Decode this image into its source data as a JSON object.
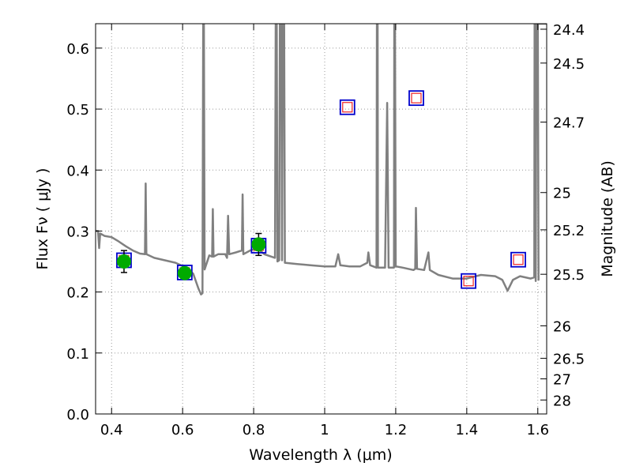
{
  "chart_data": {
    "type": "scatter",
    "xlabel": "Wavelength  λ (μm)",
    "ylabel": "Flux  Fν  ( μJy )",
    "y2label": "Magnitude (AB)",
    "xlim": [
      0.355,
      1.625
    ],
    "ylim": [
      0.0,
      0.64
    ],
    "grid": true,
    "x_ticks": [
      0.4,
      0.6,
      0.8,
      1.0,
      1.2,
      1.4,
      1.6
    ],
    "x_tick_labels": [
      "0.4",
      "0.6",
      "0.8",
      "1",
      "1.2",
      "1.4",
      "1.6"
    ],
    "y_ticks": [
      0.0,
      0.1,
      0.2,
      0.3,
      0.4,
      0.5,
      0.6
    ],
    "y_tick_labels": [
      "0.0",
      "0.1",
      "0.2",
      "0.3",
      "0.4",
      "0.5",
      "0.6"
    ],
    "mag_ticks": [
      24.4,
      24.5,
      24.7,
      25,
      25.2,
      25.5,
      26,
      26.5,
      27,
      28
    ],
    "mag_tick_labels": [
      "24.4",
      "24.5",
      "24.7",
      "25",
      "25.2",
      "25.5",
      "26",
      "26.5",
      "27",
      "28"
    ],
    "colors": {
      "model": "#808080",
      "observed_fill": "#00aa00",
      "model_square": "#0000cc",
      "upper_square": "#ee2222",
      "grid": "#999999"
    },
    "series": [
      {
        "type": "line",
        "points": [
          [
            0.355,
            0.3
          ],
          [
            0.362,
            0.3
          ],
          [
            0.365,
            0.272
          ],
          [
            0.368,
            0.296
          ],
          [
            0.38,
            0.292
          ],
          [
            0.4,
            0.29
          ],
          [
            0.42,
            0.283
          ],
          [
            0.44,
            0.275
          ],
          [
            0.46,
            0.268
          ],
          [
            0.48,
            0.263
          ],
          [
            0.494,
            0.262
          ],
          [
            0.496,
            0.378
          ],
          [
            0.498,
            0.262
          ],
          [
            0.52,
            0.256
          ],
          [
            0.55,
            0.252
          ],
          [
            0.58,
            0.248
          ],
          [
            0.61,
            0.24
          ],
          [
            0.63,
            0.23
          ],
          [
            0.645,
            0.205
          ],
          [
            0.652,
            0.196
          ],
          [
            0.656,
            0.198
          ],
          [
            0.658,
            0.64
          ],
          [
            0.66,
            0.64
          ],
          [
            0.662,
            0.237
          ],
          [
            0.675,
            0.26
          ],
          [
            0.683,
            0.258
          ],
          [
            0.685,
            0.336
          ],
          [
            0.687,
            0.258
          ],
          [
            0.7,
            0.262
          ],
          [
            0.72,
            0.262
          ],
          [
            0.725,
            0.256
          ],
          [
            0.728,
            0.325
          ],
          [
            0.731,
            0.262
          ],
          [
            0.75,
            0.265
          ],
          [
            0.767,
            0.268
          ],
          [
            0.769,
            0.36
          ],
          [
            0.771,
            0.262
          ],
          [
            0.79,
            0.268
          ],
          [
            0.81,
            0.272
          ],
          [
            0.83,
            0.262
          ],
          [
            0.86,
            0.256
          ],
          [
            0.862,
            0.64
          ],
          [
            0.865,
            0.64
          ],
          [
            0.867,
            0.25
          ],
          [
            0.872,
            0.252
          ],
          [
            0.874,
            0.64
          ],
          [
            0.878,
            0.64
          ],
          [
            0.88,
            0.252
          ],
          [
            0.882,
            0.64
          ],
          [
            0.886,
            0.64
          ],
          [
            0.888,
            0.248
          ],
          [
            0.92,
            0.246
          ],
          [
            0.96,
            0.244
          ],
          [
            1.0,
            0.242
          ],
          [
            1.03,
            0.242
          ],
          [
            1.038,
            0.262
          ],
          [
            1.044,
            0.244
          ],
          [
            1.07,
            0.242
          ],
          [
            1.1,
            0.242
          ],
          [
            1.12,
            0.248
          ],
          [
            1.123,
            0.265
          ],
          [
            1.128,
            0.244
          ],
          [
            1.146,
            0.24
          ],
          [
            1.147,
            0.64
          ],
          [
            1.149,
            0.64
          ],
          [
            1.15,
            0.24
          ],
          [
            1.17,
            0.24
          ],
          [
            1.176,
            0.51
          ],
          [
            1.18,
            0.24
          ],
          [
            1.195,
            0.24
          ],
          [
            1.196,
            0.64
          ],
          [
            1.198,
            0.64
          ],
          [
            1.2,
            0.242
          ],
          [
            1.22,
            0.24
          ],
          [
            1.25,
            0.236
          ],
          [
            1.255,
            0.238
          ],
          [
            1.257,
            0.338
          ],
          [
            1.26,
            0.238
          ],
          [
            1.28,
            0.236
          ],
          [
            1.292,
            0.265
          ],
          [
            1.296,
            0.236
          ],
          [
            1.32,
            0.228
          ],
          [
            1.36,
            0.222
          ],
          [
            1.4,
            0.222
          ],
          [
            1.44,
            0.228
          ],
          [
            1.48,
            0.226
          ],
          [
            1.5,
            0.22
          ],
          [
            1.515,
            0.202
          ],
          [
            1.53,
            0.22
          ],
          [
            1.55,
            0.226
          ],
          [
            1.58,
            0.222
          ],
          [
            1.59,
            0.224
          ],
          [
            1.591,
            0.64
          ],
          [
            1.593,
            0.64
          ],
          [
            1.594,
            0.218
          ],
          [
            1.596,
            0.64
          ],
          [
            1.6,
            0.64
          ],
          [
            1.602,
            0.22
          ],
          [
            1.6,
            0.64
          ],
          [
            1.625,
            0.64
          ]
        ]
      },
      {
        "type": "scatter",
        "points": [
          {
            "x": 0.435,
            "y": 0.25,
            "err": 0.018
          },
          {
            "x": 0.606,
            "y": 0.231,
            "err": 0.0
          },
          {
            "x": 0.814,
            "y": 0.278,
            "err": 0.018
          }
        ]
      },
      {
        "type": "scatter",
        "points": [
          {
            "x": 0.435,
            "y": 0.252
          },
          {
            "x": 0.606,
            "y": 0.232
          },
          {
            "x": 0.814,
            "y": 0.276
          },
          {
            "x": 1.064,
            "y": 0.503
          },
          {
            "x": 1.258,
            "y": 0.518
          },
          {
            "x": 1.405,
            "y": 0.218
          },
          {
            "x": 1.545,
            "y": 0.253
          }
        ]
      }
    ]
  }
}
